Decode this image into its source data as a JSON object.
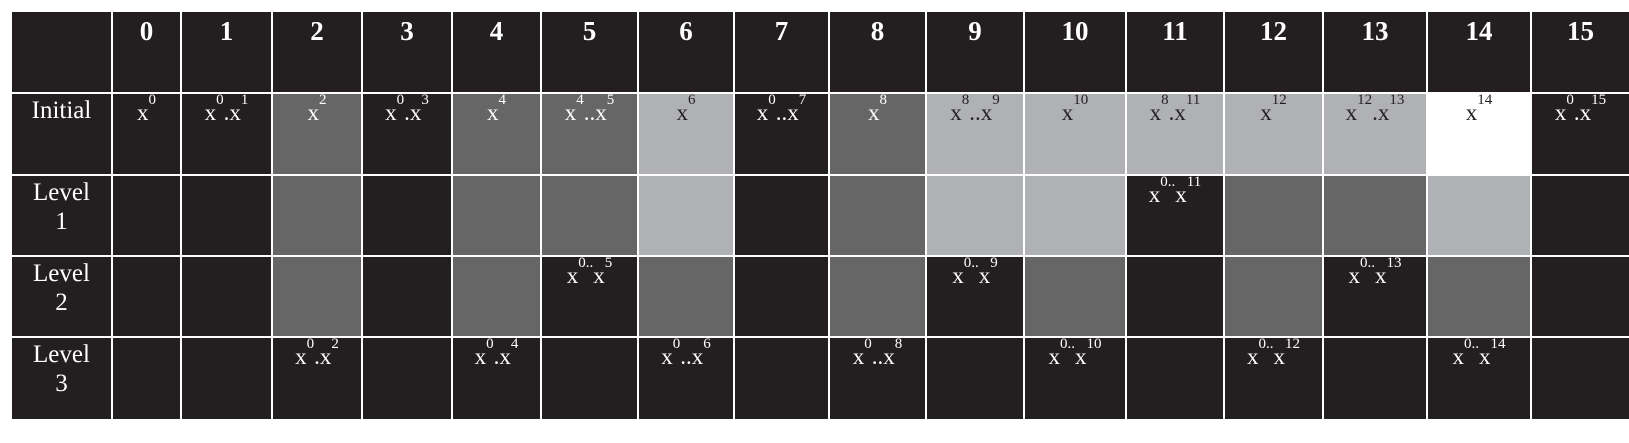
{
  "columns": [
    "0",
    "1",
    "2",
    "3",
    "4",
    "5",
    "6",
    "7",
    "8",
    "9",
    "10",
    "11",
    "12",
    "13",
    "14",
    "15"
  ],
  "rows": [
    {
      "label": [
        "Initial"
      ],
      "cells": [
        {
          "text": "x",
          "sub": "0",
          "shade": 0
        },
        {
          "text": "x",
          "sub": "0",
          "text2": ".x",
          "sub2": "1",
          "shade": 0
        },
        {
          "text": "x",
          "sub": "2",
          "shade": 1
        },
        {
          "text": "x",
          "sub": "0",
          "text2": ".x",
          "sub2": "3",
          "shade": 0
        },
        {
          "text": "x",
          "sub": "4",
          "shade": 1
        },
        {
          "text": "x",
          "sub": "4",
          "text2": "..x",
          "sub2": "5",
          "shade": 1
        },
        {
          "text": "x",
          "sub": "6",
          "shade": 2
        },
        {
          "text": "x",
          "sub": "0",
          "text2": "..x",
          "sub2": "7",
          "shade": 0
        },
        {
          "text": "x",
          "sub": "8",
          "shade": 1
        },
        {
          "text": "x",
          "sub": "8",
          "text2": "..x",
          "sub2": "9",
          "shade": 2
        },
        {
          "text": "x",
          "sub": "10",
          "shade": 2
        },
        {
          "text": "x",
          "sub": "8",
          "text2": ".x",
          "sub2": "11",
          "shade": 2
        },
        {
          "text": "x",
          "sub": "12",
          "shade": 2
        },
        {
          "text": "x",
          "sub": "12",
          "text2": ".x",
          "sub2": "13",
          "shade": 2
        },
        {
          "text": "x",
          "sub": "14",
          "shade": 3
        },
        {
          "text": "x",
          "sub": "0",
          "text2": ".x",
          "sub2": "15",
          "shade": 0
        }
      ]
    },
    {
      "label": [
        "Level",
        "1"
      ],
      "cells": [
        {
          "shade": 0
        },
        {
          "shade": 0
        },
        {
          "shade": 1
        },
        {
          "shade": 0
        },
        {
          "shade": 1
        },
        {
          "shade": 1
        },
        {
          "shade": 2
        },
        {
          "shade": 0
        },
        {
          "shade": 1
        },
        {
          "shade": 2
        },
        {
          "shade": 2
        },
        {
          "text": "x",
          "sub": "0..",
          "text2": "x",
          "sub2": "11",
          "shade": 0
        },
        {
          "shade": 1
        },
        {
          "shade": 1
        },
        {
          "shade": 2
        },
        {
          "shade": 0
        }
      ]
    },
    {
      "label": [
        "Level",
        "2"
      ],
      "cells": [
        {
          "shade": 0
        },
        {
          "shade": 0
        },
        {
          "shade": 1
        },
        {
          "shade": 0
        },
        {
          "shade": 1
        },
        {
          "text": "x",
          "sub": "0..",
          "text2": "x",
          "sub2": "5",
          "shade": 0
        },
        {
          "shade": 1
        },
        {
          "shade": 0
        },
        {
          "shade": 1
        },
        {
          "text": "x",
          "sub": "0..",
          "text2": "x",
          "sub2": "9",
          "shade": 0
        },
        {
          "shade": 1
        },
        {
          "shade": 0
        },
        {
          "shade": 1
        },
        {
          "text": "x",
          "sub": "0..",
          "text2": "x",
          "sub2": "13",
          "shade": 0
        },
        {
          "shade": 1
        },
        {
          "shade": 0
        }
      ]
    },
    {
      "label": [
        "Level",
        "3"
      ],
      "cells": [
        {
          "shade": 0
        },
        {
          "shade": 0
        },
        {
          "text": "x",
          "sub": "0",
          "text2": ".x",
          "sub2": "2",
          "shade": 0
        },
        {
          "shade": 0
        },
        {
          "text": "x",
          "sub": "0",
          "text2": ".x",
          "sub2": "4",
          "shade": 0
        },
        {
          "shade": 0
        },
        {
          "text": "x",
          "sub": "0",
          "text2": "..x",
          "sub2": "6",
          "shade": 0
        },
        {
          "shade": 0
        },
        {
          "text": "x",
          "sub": "0",
          "text2": "..x",
          "sub2": "8",
          "shade": 0
        },
        {
          "shade": 0
        },
        {
          "text": "x",
          "sub": "0..",
          "text2": "x",
          "sub2": "10",
          "shade": 0
        },
        {
          "shade": 0
        },
        {
          "text": "x",
          "sub": "0..",
          "text2": "x",
          "sub2": "12",
          "shade": 0
        },
        {
          "shade": 0
        },
        {
          "text": "x",
          "sub": "0..",
          "text2": "x",
          "sub2": "14",
          "shade": 0
        },
        {
          "shade": 0
        }
      ]
    }
  ],
  "shade_colors": [
    "#231f20",
    "#666667",
    "#b0b1b4",
    "#ffffff"
  ]
}
